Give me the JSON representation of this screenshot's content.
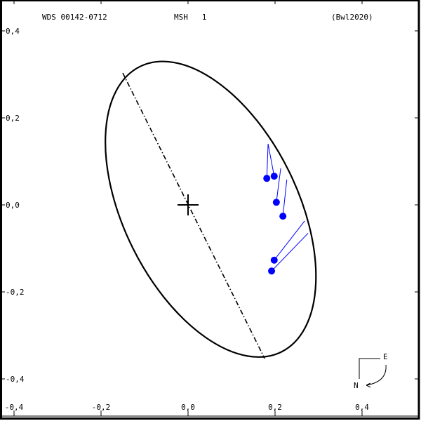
{
  "header": {
    "wds_id": "WDS 00142-0712",
    "discoverer": "MSH   1",
    "reference": "(Bwl2020)"
  },
  "compass": {
    "east_label": "E",
    "north_label": "N"
  },
  "colors": {
    "frame": "#000000",
    "orbit": "#000000",
    "observations": "#0000ff",
    "background": "#ffffff"
  },
  "chart_data": {
    "type": "scatter",
    "title": "WDS 00142-0712  MSH 1  (Bwl2020)",
    "xlabel": "",
    "ylabel": "",
    "xlim": [
      -0.48,
      0.53
    ],
    "ylim": [
      -0.49,
      0.47
    ],
    "x_ticks": [
      -0.4,
      -0.2,
      0.0,
      0.2,
      0.4
    ],
    "x_tick_labels": [
      "-0,4",
      "-0,2",
      "0,0",
      "0,2",
      "0,4"
    ],
    "y_ticks": [
      0.4,
      0.2,
      0.0,
      -0.2,
      -0.4
    ],
    "y_tick_labels": [
      "0,4",
      "0,2",
      "0,0",
      "-0,2",
      "-0,4"
    ],
    "grid": false,
    "primary_star": {
      "x": 0.0,
      "y": 0.0,
      "marker": "cross"
    },
    "orbit_ellipse": {
      "center": [
        0.052,
        -0.01
      ],
      "semi_major": 0.366,
      "semi_minor": 0.2,
      "angle_deg": 63.6
    },
    "line_of_apsides": {
      "from": [
        -0.15,
        0.303
      ],
      "to": [
        0.176,
        -0.353
      ],
      "style": "dash-dot"
    },
    "series": [
      {
        "name": "observations",
        "points": [
          {
            "x": 0.181,
            "y": 0.061,
            "orbit_x": 0.184,
            "orbit_y": 0.14
          },
          {
            "x": 0.198,
            "y": 0.066,
            "orbit_x": 0.184,
            "orbit_y": 0.14
          },
          {
            "x": 0.203,
            "y": 0.006,
            "orbit_x": 0.213,
            "orbit_y": 0.084
          },
          {
            "x": 0.218,
            "y": -0.026,
            "orbit_x": 0.227,
            "orbit_y": 0.058
          },
          {
            "x": 0.198,
            "y": -0.127,
            "orbit_x": 0.268,
            "orbit_y": -0.037
          },
          {
            "x": 0.192,
            "y": -0.152,
            "orbit_x": 0.276,
            "orbit_y": -0.065
          }
        ]
      }
    ]
  }
}
